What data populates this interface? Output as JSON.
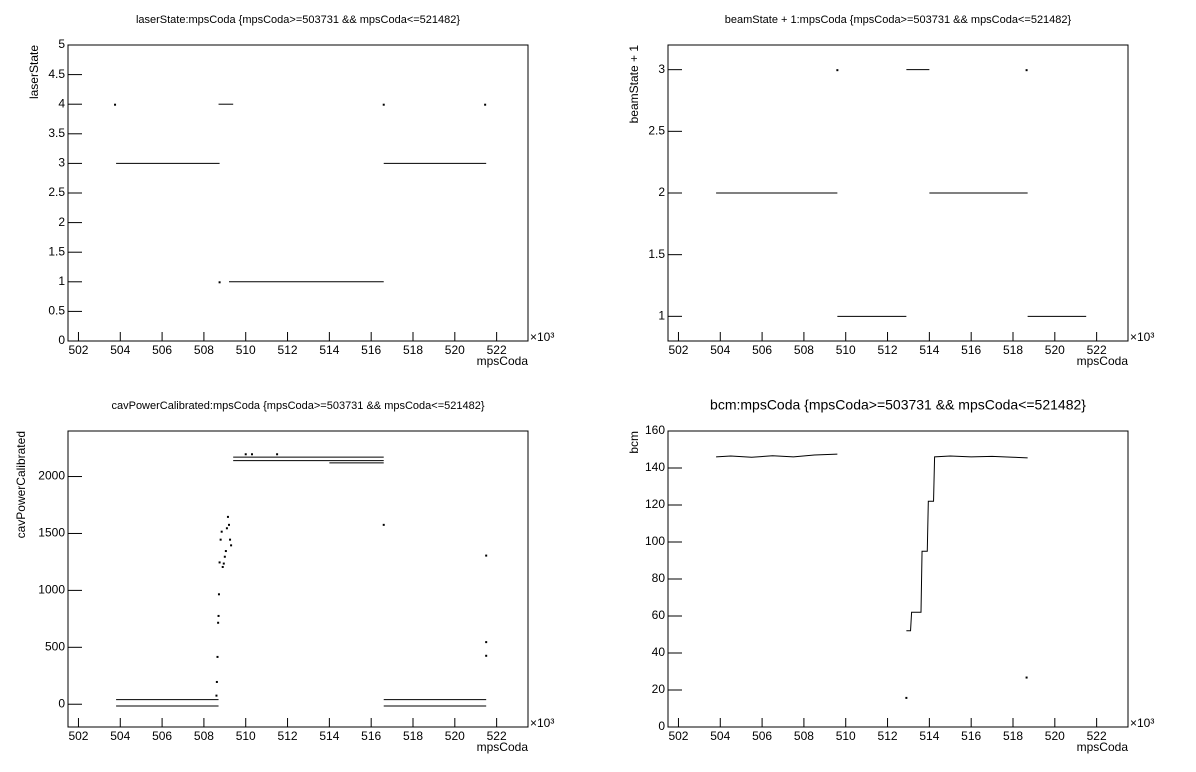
{
  "chart_data": [
    {
      "type": "scatter",
      "title": "laserState:mpsCoda {mpsCoda>=503731 && mpsCoda<=521482}",
      "xlabel": "mpsCoda",
      "ylabel": "laserState",
      "x_multiplier": "×10³",
      "xlim": [
        501.5,
        523.5
      ],
      "xticks": [
        502,
        504,
        506,
        508,
        510,
        512,
        514,
        516,
        518,
        520,
        522
      ],
      "ylim": [
        0,
        5
      ],
      "yticks": [
        0,
        0.5,
        1,
        1.5,
        2,
        2.5,
        3,
        3.5,
        4,
        4.5,
        5
      ],
      "series": [
        {
          "color": "#000000",
          "x": [
            503.75,
            null,
            503.8,
            508.75,
            null,
            508.75,
            null,
            508.7,
            509.4,
            null,
            509.2,
            516.6,
            null,
            516.6,
            null,
            516.6,
            521.5,
            null,
            521.45
          ],
          "values": [
            4,
            null,
            3,
            3,
            null,
            1,
            null,
            4,
            4,
            null,
            1,
            1,
            null,
            4,
            null,
            3,
            3,
            null,
            4
          ]
        }
      ]
    },
    {
      "type": "scatter",
      "title": "beamState + 1:mpsCoda {mpsCoda>=503731 && mpsCoda<=521482}",
      "xlabel": "mpsCoda",
      "ylabel": "beamState + 1",
      "x_multiplier": "×10³",
      "xlim": [
        501.5,
        523.5
      ],
      "xticks": [
        502,
        504,
        506,
        508,
        510,
        512,
        514,
        516,
        518,
        520,
        522
      ],
      "ylim": [
        0.8,
        3.2
      ],
      "yticks": [
        1,
        1.5,
        2,
        2.5,
        3
      ],
      "series": [
        {
          "color": "#000000",
          "x": [
            509.6,
            null,
            503.8,
            509.6,
            null,
            509.6,
            512.9,
            null,
            512.9,
            514.0,
            null,
            514.0,
            518.7,
            null,
            518.65,
            null,
            518.7,
            521.5
          ],
          "values": [
            3,
            null,
            2,
            2,
            null,
            1,
            1,
            null,
            3,
            3,
            null,
            2,
            2,
            null,
            3,
            null,
            1,
            1
          ]
        }
      ]
    },
    {
      "type": "scatter",
      "title": "cavPowerCalibrated:mpsCoda {mpsCoda>=503731 && mpsCoda<=521482}",
      "xlabel": "mpsCoda",
      "ylabel": "cavPowerCalibrated",
      "x_multiplier": "×10³",
      "xlim": [
        501.5,
        523.5
      ],
      "xticks": [
        502,
        504,
        506,
        508,
        510,
        512,
        514,
        516,
        518,
        520,
        522
      ],
      "ylim": [
        -200,
        2400
      ],
      "yticks": [
        0,
        500,
        1000,
        1500,
        2000
      ],
      "series": [
        {
          "color": "#000000",
          "x": [
            503.8,
            508.7,
            null,
            503.8,
            508.7,
            null,
            516.6,
            521.5,
            null,
            516.6,
            521.5,
            null,
            509.4,
            516.6,
            null,
            509.4,
            516.6,
            null,
            514.0,
            516.6
          ],
          "values": [
            40,
            40,
            null,
            -15,
            -15,
            null,
            40,
            40,
            null,
            -15,
            -15,
            null,
            2170,
            2170,
            null,
            2140,
            2140,
            null,
            2120,
            2120
          ]
        },
        {
          "color": "#000000",
          "mode": "markers",
          "x": [
            508.6,
            508.62,
            508.65,
            508.68,
            508.7,
            508.72,
            508.75,
            508.8,
            508.85,
            508.9,
            508.95,
            509.0,
            509.05,
            509.1,
            509.15,
            509.2,
            509.25,
            509.3,
            516.6,
            521.5,
            521.5,
            521.5,
            510.0,
            510.3,
            511.5
          ],
          "values": [
            80,
            200,
            420,
            720,
            780,
            970,
            1250,
            1450,
            1520,
            1210,
            1240,
            1300,
            1350,
            1550,
            1650,
            1580,
            1450,
            1400,
            1580,
            1310,
            550,
            430,
            2200,
            2200,
            2200
          ]
        }
      ]
    },
    {
      "type": "scatter",
      "title": "bcm:mpsCoda {mpsCoda>=503731 && mpsCoda<=521482}",
      "xlabel": "mpsCoda",
      "ylabel": "bcm",
      "x_multiplier": "×10³",
      "xlim": [
        501.5,
        523.5
      ],
      "xticks": [
        502,
        504,
        506,
        508,
        510,
        512,
        514,
        516,
        518,
        520,
        522
      ],
      "ylim": [
        0,
        160
      ],
      "yticks": [
        0,
        20,
        40,
        60,
        80,
        100,
        120,
        140,
        160
      ],
      "series": [
        {
          "color": "#000000",
          "x": [
            503.8,
            504.5,
            505.5,
            506.5,
            507.5,
            508.5,
            509.6
          ],
          "values": [
            146,
            146.5,
            145.8,
            146.6,
            146,
            147,
            147.5
          ]
        },
        {
          "color": "#000000",
          "x": [
            512.9,
            513.1,
            513.15,
            513.6,
            513.65,
            513.9,
            513.95,
            514.2,
            514.25,
            515,
            516,
            517,
            518,
            518.7
          ],
          "values": [
            52,
            52,
            62,
            62,
            95,
            95,
            122,
            122,
            146,
            146.5,
            146,
            146.3,
            145.8,
            145.5
          ]
        },
        {
          "color": "#000000",
          "mode": "markers",
          "x": [
            512.9,
            518.65
          ],
          "values": [
            16,
            27
          ]
        }
      ]
    }
  ]
}
